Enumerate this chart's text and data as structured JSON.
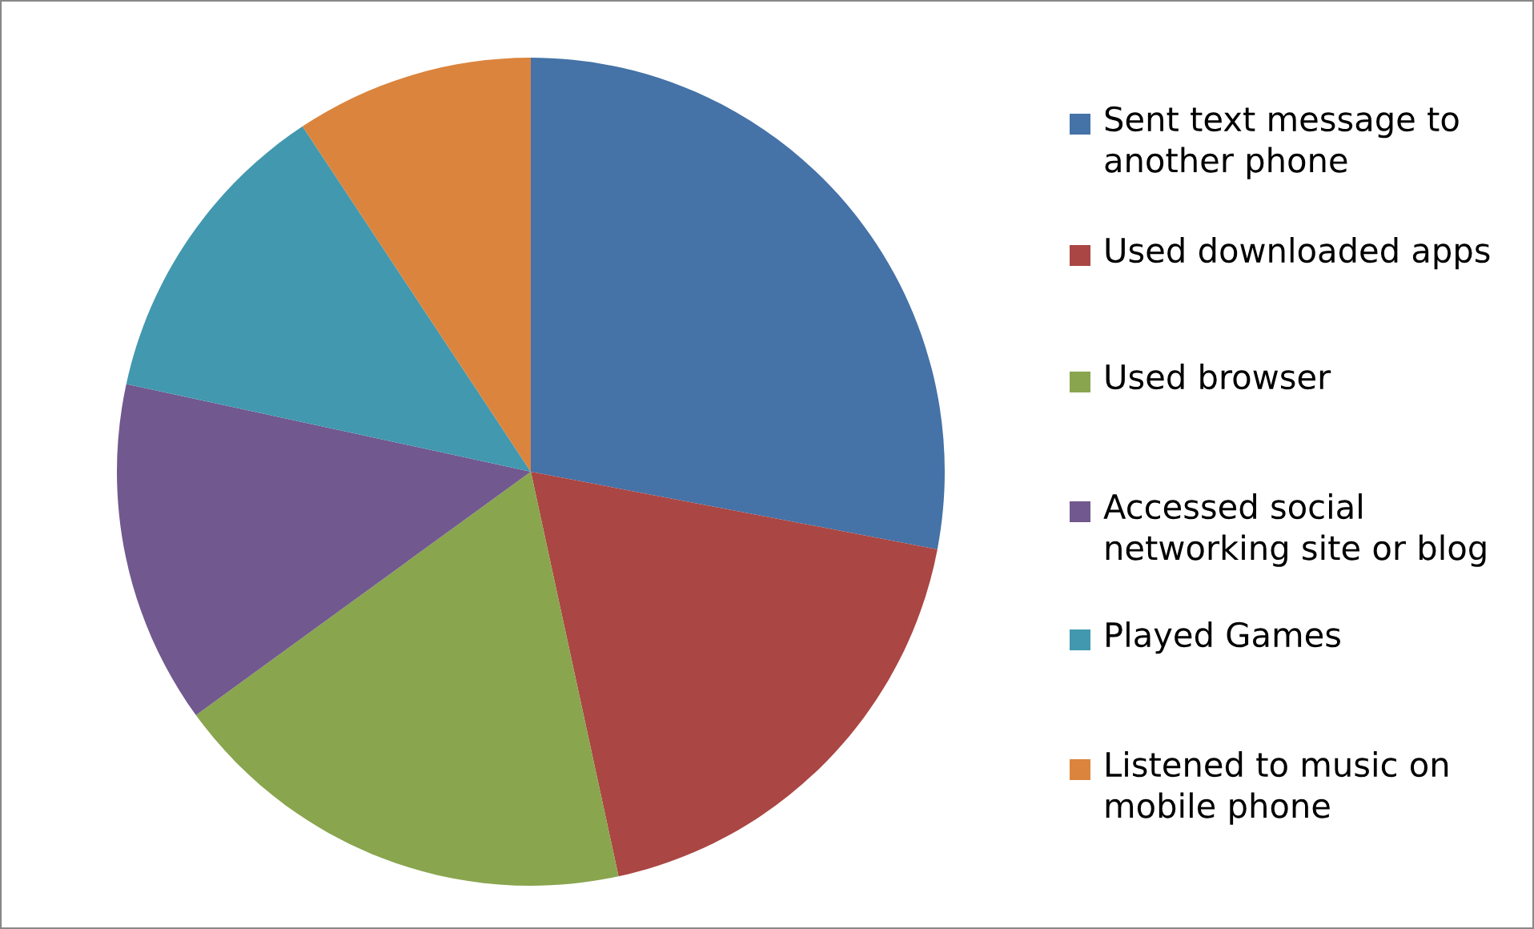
{
  "chart_data": {
    "type": "pie",
    "categories": [
      "Sent text message to another phone",
      "Used downloaded apps",
      "Used browser",
      "Accessed social networking site or blog",
      "Played Games",
      "Listened to music on mobile phone"
    ],
    "values": [
      28.0,
      18.6,
      18.4,
      13.4,
      12.3,
      9.3
    ],
    "colors": [
      "#4572a7",
      "#aa4643",
      "#89a54e",
      "#71588f",
      "#4198af",
      "#db843d"
    ],
    "legend": "right"
  }
}
